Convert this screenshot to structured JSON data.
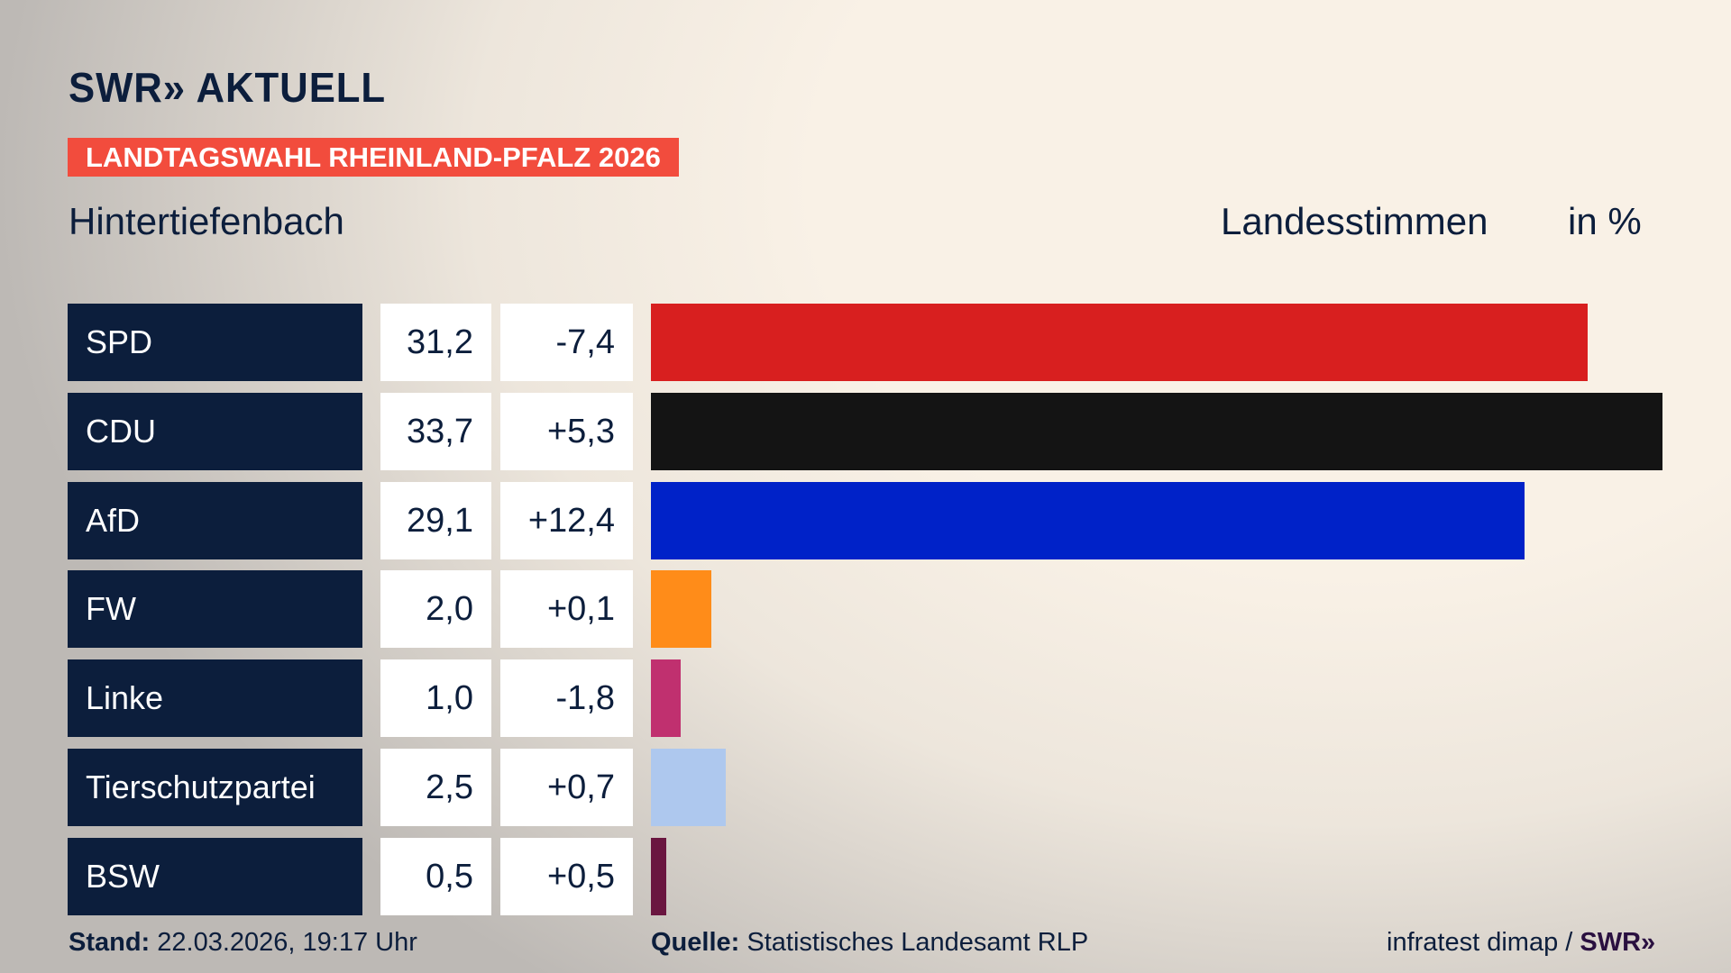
{
  "brand": {
    "logo": "SWR» AKTUELL"
  },
  "banner": "LANDTAGSWAHL RHEINLAND-PFALZ 2026",
  "place": "Hintertiefenbach",
  "metric": "Landesstimmen",
  "unit": "in %",
  "chart_data": {
    "type": "bar",
    "orientation": "horizontal",
    "categories": [
      "SPD",
      "CDU",
      "AfD",
      "FW",
      "Linke",
      "Tierschutzpartei",
      "BSW"
    ],
    "values": [
      31.2,
      33.7,
      29.1,
      2.0,
      1.0,
      2.5,
      0.5
    ],
    "value_labels": [
      "31,2",
      "33,7",
      "29,1",
      "2,0",
      "1,0",
      "2,5",
      "0,5"
    ],
    "diff_labels": [
      "-7,4",
      "+5,3",
      "+12,4",
      "+0,1",
      "-1,8",
      "+0,7",
      "+0,5"
    ],
    "colors": [
      "#d81f1f",
      "#141414",
      "#0022c8",
      "#ff8c19",
      "#c0306f",
      "#aec8ee",
      "#6a1640"
    ]
  },
  "footer": {
    "stand_label": "Stand:",
    "stand_value": "22.03.2026, 19:17 Uhr",
    "source_label": "Quelle:",
    "source_value": "Statistisches Landesamt RLP",
    "credit": "infratest dimap / ",
    "credit_logo": "SWR»"
  }
}
